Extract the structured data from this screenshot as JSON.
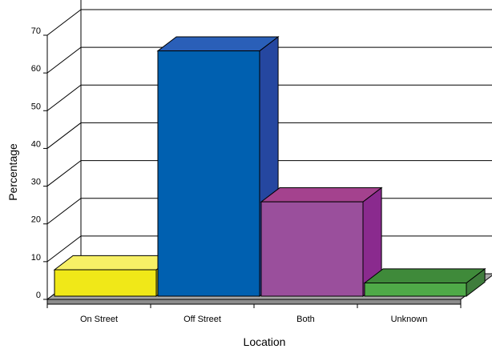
{
  "chart_data": {
    "type": "bar",
    "categories": [
      "On Street",
      "Off Street",
      "Both",
      "Unknown"
    ],
    "values": [
      7,
      65,
      25,
      3.5
    ],
    "xlabel": "Location",
    "ylabel": "Percentage",
    "ylim": [
      0,
      70
    ],
    "yticks": [
      0,
      10,
      20,
      30,
      40,
      50,
      60,
      70
    ],
    "grid": true,
    "style": "3d",
    "colors": [
      {
        "front": "#f0e818",
        "top": "#f7f066",
        "side": "#c9c010"
      },
      {
        "front": "#0060b0",
        "top": "#2a5fb8",
        "side": "#2547a0"
      },
      {
        "front": "#9a4f9c",
        "top": "#a4428e",
        "side": "#8a2a8e"
      },
      {
        "front": "#4faa48",
        "top": "#3f8a3a",
        "side": "#3f7d3c"
      }
    ],
    "floor_color": "#a8a8a8"
  }
}
